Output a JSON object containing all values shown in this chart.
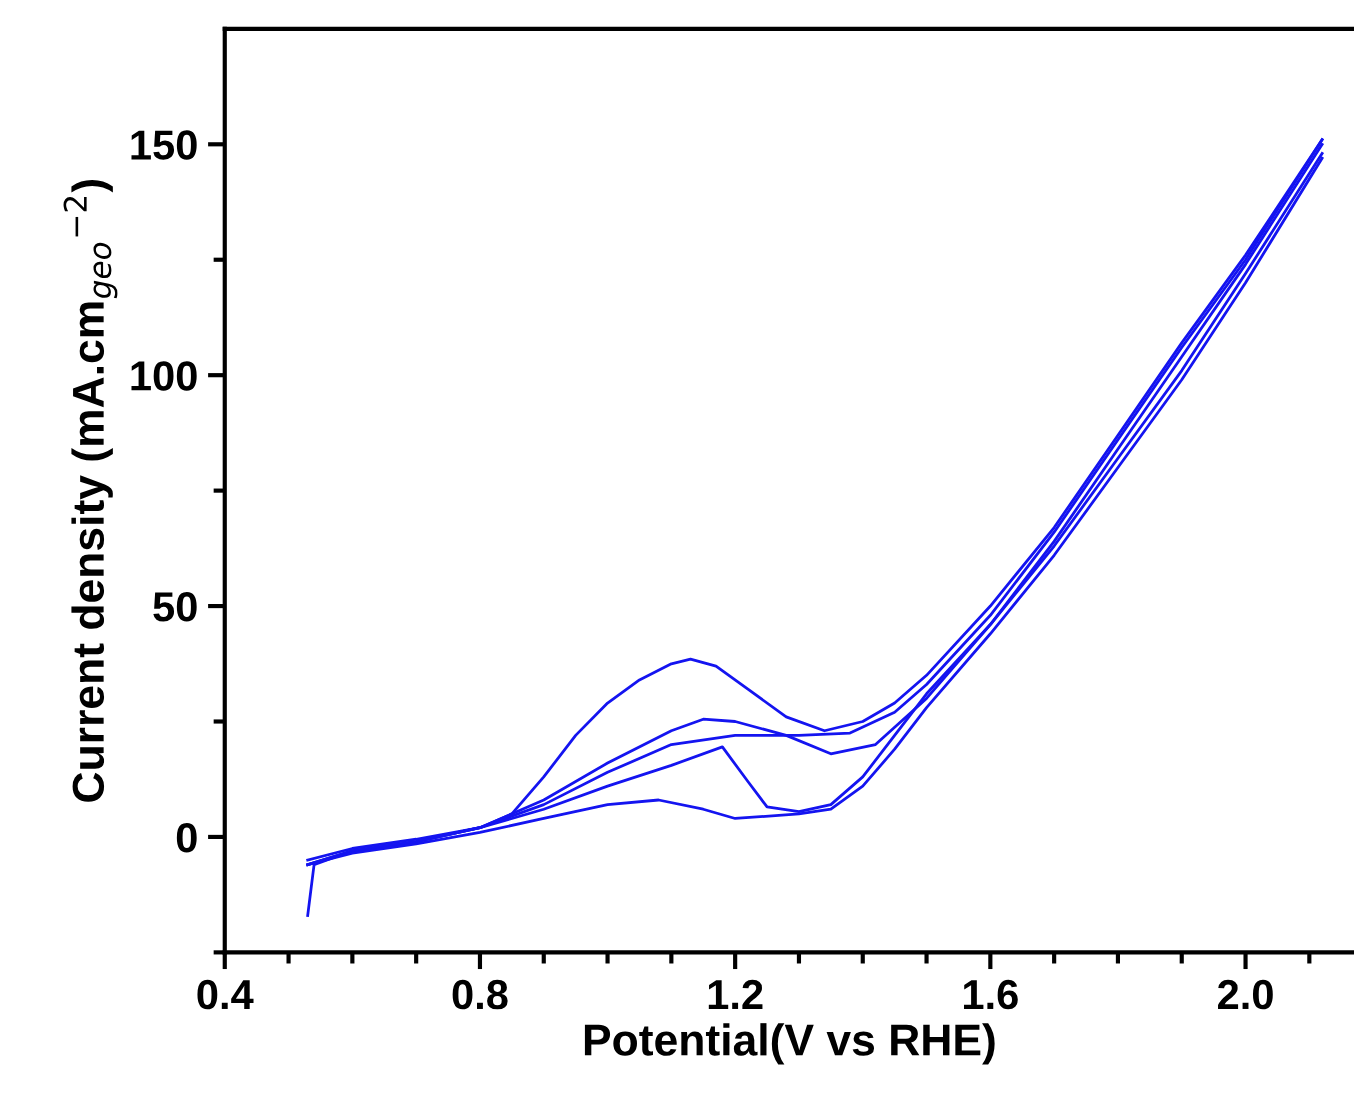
{
  "chart_data": {
    "type": "line",
    "xlabel": "Potential(V vs RHE)",
    "ylabel": "Current density (mA.cm$_{geo}$$^{−2}$)",
    "xlim": [
      0.4,
      2.17
    ],
    "ylim": [
      -25,
      175
    ],
    "xticks": [
      0.4,
      {
        "value": 0.5,
        "label": null
      },
      {
        "value": 0.6,
        "label": null
      },
      {
        "value": 0.7,
        "label": null
      },
      0.8,
      {
        "value": 0.9,
        "label": null
      },
      {
        "value": 1.0,
        "label": null
      },
      {
        "value": 1.1,
        "label": null
      },
      1.2,
      {
        "value": 1.3,
        "label": null
      },
      {
        "value": 1.4,
        "label": null
      },
      {
        "value": 1.5,
        "label": null
      },
      1.6,
      {
        "value": 1.7,
        "label": null
      },
      {
        "value": 1.8,
        "label": null
      },
      {
        "value": 1.9,
        "label": null
      },
      {
        "value": 2.0,
        "label": "2.0"
      },
      {
        "value": 2.1,
        "label": null
      }
    ],
    "yticks": [
      {
        "value": -25,
        "label": null
      },
      0,
      {
        "value": 25,
        "label": null
      },
      50,
      {
        "value": 75,
        "label": null
      },
      100,
      {
        "value": 125,
        "label": null
      },
      150
    ],
    "grid": false,
    "legend": false,
    "marker": "none",
    "line_style": "solid",
    "series": [
      {
        "color": "#1414f0",
        "x": [
          0.53,
          0.54,
          0.6,
          0.7,
          0.8,
          0.85,
          0.9,
          0.95,
          1.0,
          1.05,
          1.1,
          1.13,
          1.17,
          1.22,
          1.28,
          1.34,
          1.4,
          1.45,
          1.5,
          1.6,
          1.7,
          1.8,
          1.9,
          2.0,
          2.12
        ],
        "values": [
          -17,
          -6,
          -3,
          -1,
          2,
          5,
          13,
          22,
          29,
          34,
          37.5,
          38.5,
          37,
          32,
          26,
          23,
          25,
          29,
          35,
          50,
          67,
          87,
          107,
          126,
          151
        ]
      },
      {
        "color": "#1414f0",
        "x": [
          0.53,
          0.6,
          0.7,
          0.8,
          0.9,
          1.0,
          1.1,
          1.15,
          1.2,
          1.28,
          1.35,
          1.42,
          1.5,
          1.6,
          1.7,
          1.8,
          1.9,
          2.0,
          2.12
        ],
        "values": [
          -6,
          -3,
          -1,
          2,
          8,
          16,
          23,
          25.5,
          25,
          22,
          18,
          20,
          30,
          46,
          64,
          84,
          104,
          124,
          150
        ]
      },
      {
        "color": "#1414f0",
        "x": [
          0.53,
          0.6,
          0.7,
          0.8,
          0.9,
          1.0,
          1.1,
          1.2,
          1.3,
          1.38,
          1.45,
          1.5,
          1.6,
          1.7,
          1.8,
          1.9,
          2.0,
          2.12
        ],
        "values": [
          -5,
          -2.5,
          -0.5,
          2,
          7,
          14,
          20,
          22,
          22,
          22.5,
          27,
          33,
          48,
          66,
          86,
          106,
          125,
          151
        ]
      },
      {
        "color": "#1414f0",
        "x": [
          2.12,
          2.0,
          1.9,
          1.8,
          1.7,
          1.6,
          1.5,
          1.45,
          1.4,
          1.35,
          1.3,
          1.25,
          1.22,
          1.18,
          1.1,
          1.0,
          0.9,
          0.8,
          0.7,
          0.6,
          0.53
        ],
        "values": [
          148,
          122,
          101,
          82,
          63,
          46,
          31,
          22,
          13,
          7,
          5.5,
          6.5,
          12,
          19.5,
          15.5,
          11,
          6,
          2,
          -1,
          -3,
          -6
        ]
      },
      {
        "color": "#1414f0",
        "x": [
          2.12,
          2.0,
          1.9,
          1.8,
          1.7,
          1.6,
          1.5,
          1.45,
          1.4,
          1.35,
          1.3,
          1.2,
          1.15,
          1.08,
          1.0,
          0.9,
          0.8,
          0.7,
          0.6,
          0.53
        ],
        "values": [
          147,
          120,
          99,
          80,
          61,
          44,
          28,
          19,
          11,
          6,
          5,
          4,
          6,
          8,
          7,
          4,
          1,
          -1.5,
          -3.5,
          -6
        ]
      }
    ]
  }
}
